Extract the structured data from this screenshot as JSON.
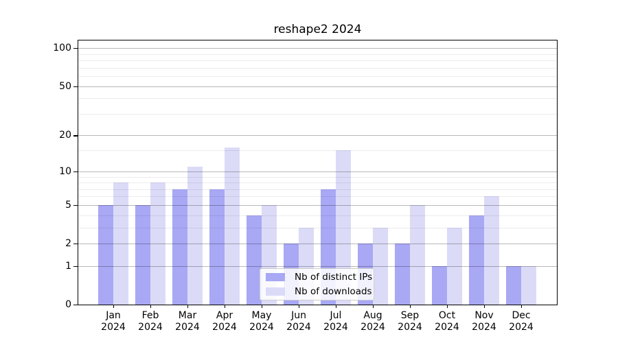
{
  "chart_data": {
    "type": "bar",
    "title": "reshape2 2024",
    "categories": [
      "Jan 2024",
      "Feb 2024",
      "Mar 2024",
      "Apr 2024",
      "May 2024",
      "Jun 2024",
      "Jul 2024",
      "Aug 2024",
      "Sep 2024",
      "Oct 2024",
      "Nov 2024",
      "Dec 2024"
    ],
    "series": [
      {
        "name": "Nb of distinct IPs",
        "color": "#a8a8f5",
        "values": [
          5,
          5,
          7,
          7,
          4,
          2,
          7,
          2,
          2,
          1,
          4,
          1
        ]
      },
      {
        "name": "Nb of downloads",
        "color": "#dbdbf8",
        "values": [
          8,
          8,
          11,
          16,
          5,
          3,
          15,
          3,
          5,
          3,
          6,
          1
        ]
      }
    ],
    "yscale": "log10(1+x)",
    "yticks": [
      0,
      1,
      2,
      5,
      10,
      20,
      50,
      100
    ],
    "minor_yticks": [
      3,
      4,
      6,
      7,
      8,
      9,
      15,
      30,
      40,
      60,
      70,
      80,
      90
    ],
    "ylim": [
      0,
      115
    ],
    "xlabel": "",
    "ylabel": "",
    "grid": "both",
    "legend_position": "lower center",
    "axis_color": "#000000",
    "major_grid_color": "#b0b0b0",
    "minor_grid_color": "#e8e8e8"
  }
}
